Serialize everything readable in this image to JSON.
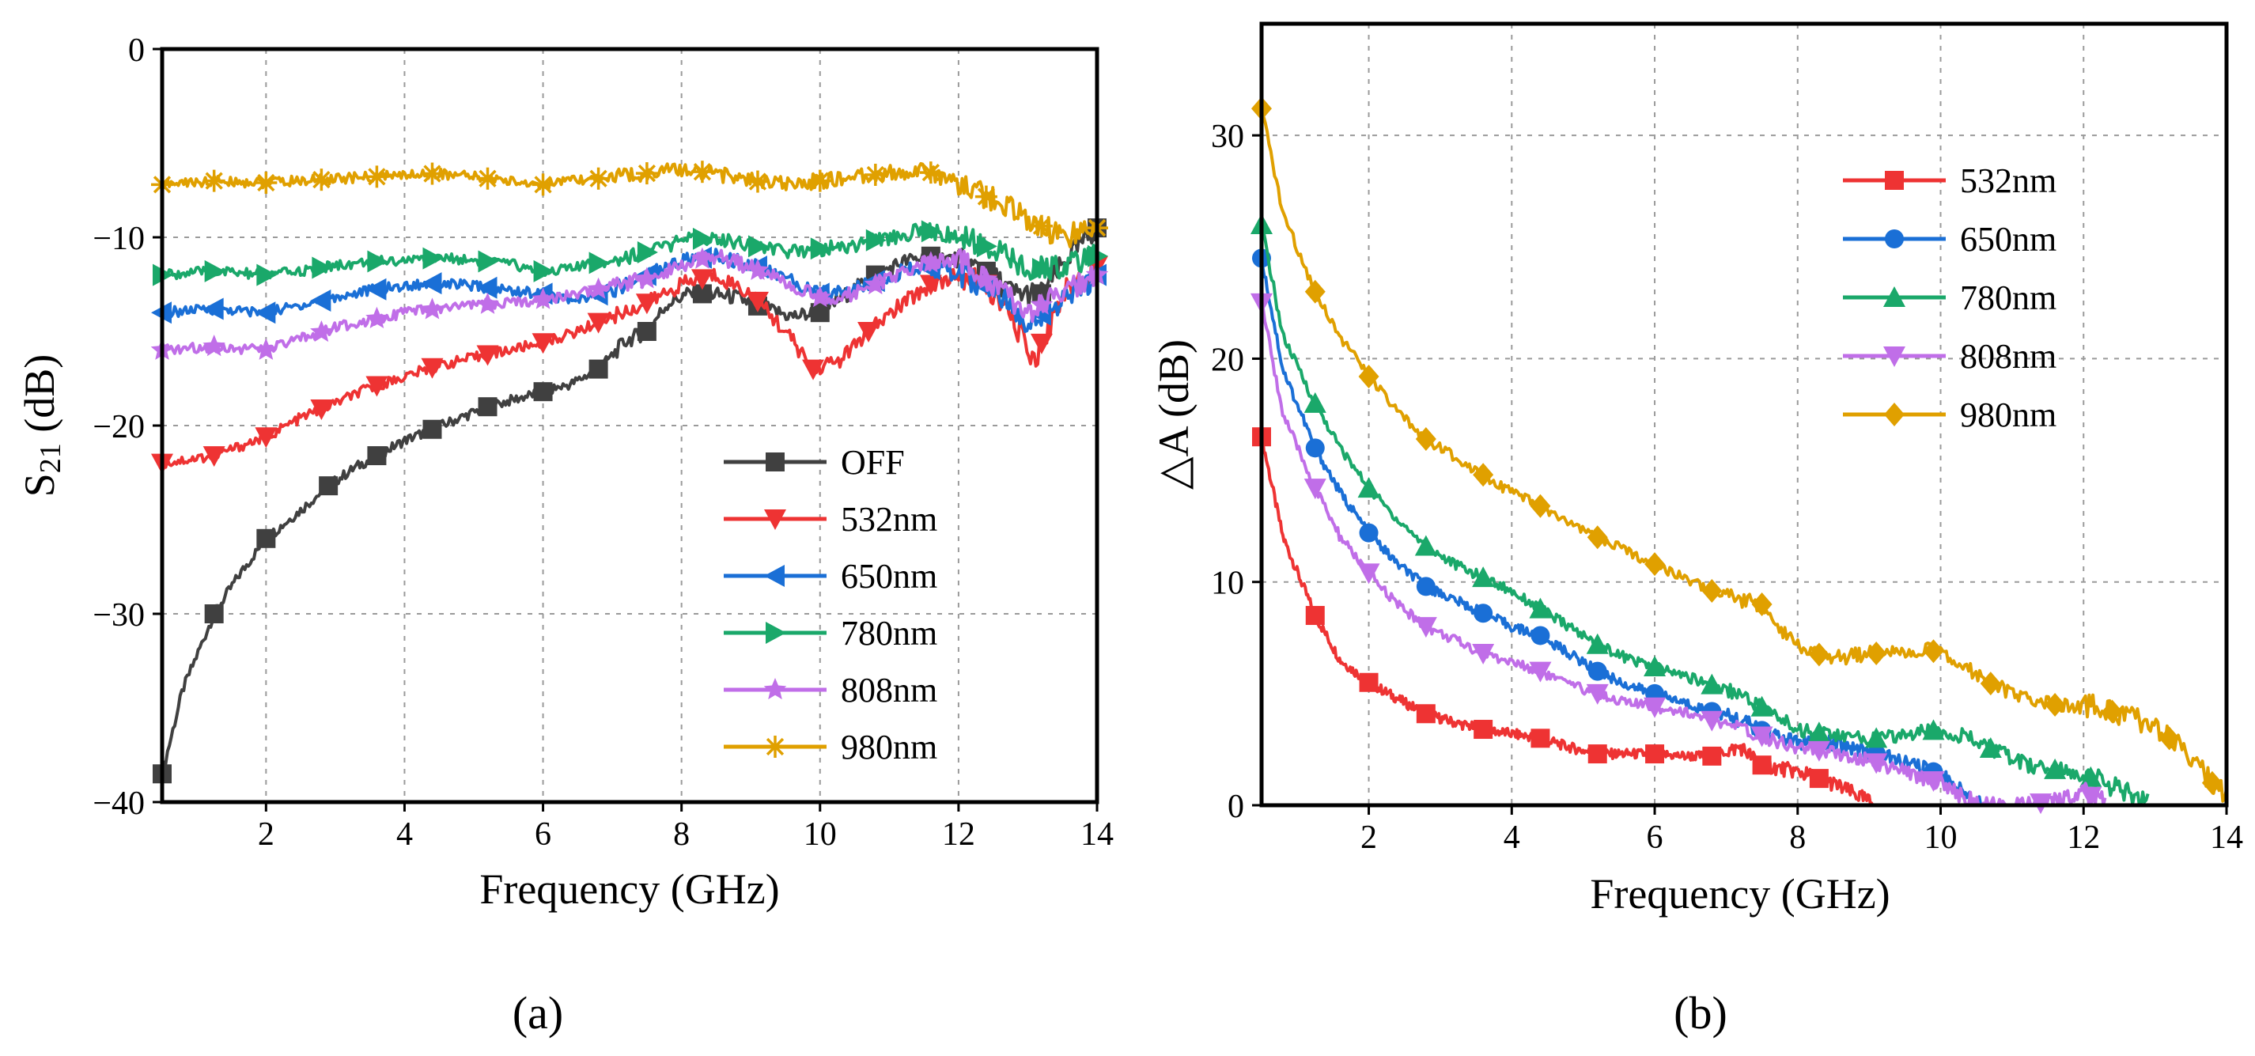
{
  "chart_data": [
    {
      "type": "line",
      "panel": "a",
      "caption": "(a)",
      "xlabel": "Frequency (GHz)",
      "ylabel_main": "S",
      "ylabel_sub": "21",
      "ylabel_unit": " (dB)",
      "xlim": [
        0.5,
        14
      ],
      "ylim": [
        -40,
        0
      ],
      "xticks": [
        2,
        4,
        6,
        8,
        10,
        12,
        14
      ],
      "xtick_labels": [
        "2",
        "4",
        "6",
        "8",
        "10",
        "12",
        "14"
      ],
      "yticks": [
        -40,
        -30,
        -20,
        -10,
        0
      ],
      "ytick_labels": [
        "−40",
        "−30",
        "−20",
        "−10",
        "0"
      ],
      "grid": true,
      "legend_position": "bottom-right",
      "series": [
        {
          "name": "OFF",
          "color": "#404040",
          "marker": "square",
          "x": [
            0.5,
            0.8,
            1.25,
            1.6,
            2.0,
            2.5,
            2.9,
            3.3,
            3.6,
            4.0,
            4.4,
            4.8,
            5.2,
            5.6,
            6.0,
            6.4,
            6.8,
            7.2,
            7.5,
            7.8,
            8.1,
            8.4,
            8.8,
            9.2,
            9.6,
            10.0,
            10.4,
            10.8,
            11.2,
            11.6,
            12.0,
            12.4,
            12.8,
            13.2,
            13.6,
            14.0
          ],
          "y": [
            -38.5,
            -34.0,
            -30.0,
            -28.0,
            -26.0,
            -24.5,
            -23.2,
            -22.2,
            -21.6,
            -20.8,
            -20.2,
            -19.6,
            -19.0,
            -18.6,
            -18.2,
            -17.8,
            -17.0,
            -15.5,
            -15.0,
            -13.5,
            -13.0,
            -13.0,
            -13.2,
            -13.8,
            -14.2,
            -14.0,
            -13.0,
            -12.0,
            -11.3,
            -11.0,
            -11.2,
            -11.8,
            -13.0,
            -13.0,
            -11.0,
            -9.5
          ],
          "marker_x": [
            0.5,
            1.25,
            2.0,
            2.9,
            3.6,
            4.4,
            5.2,
            6.0,
            6.8,
            7.5,
            8.3,
            9.1,
            10.0,
            10.8,
            11.6,
            12.4,
            13.2,
            14.0
          ]
        },
        {
          "name": "532nm",
          "color": "#ee3333",
          "marker": "triangle-down",
          "x": [
            0.5,
            1.25,
            2.0,
            2.5,
            3.0,
            3.5,
            4.0,
            4.5,
            5.0,
            5.5,
            6.0,
            6.5,
            7.0,
            7.5,
            8.0,
            8.5,
            9.0,
            9.5,
            9.9,
            10.3,
            10.7,
            11.2,
            11.6,
            12.0,
            12.4,
            12.8,
            13.1,
            13.5,
            14.0
          ],
          "y": [
            -22.0,
            -21.6,
            -20.6,
            -19.6,
            -18.8,
            -18.0,
            -17.4,
            -16.8,
            -16.4,
            -16.0,
            -15.6,
            -15.0,
            -14.2,
            -13.5,
            -12.5,
            -12.0,
            -13.0,
            -15.0,
            -17.0,
            -16.5,
            -15.0,
            -13.5,
            -12.5,
            -12.0,
            -12.5,
            -14.5,
            -16.5,
            -13.0,
            -11.5
          ],
          "marker_x": [
            0.5,
            1.25,
            2.0,
            2.8,
            3.6,
            4.4,
            5.2,
            6.0,
            6.8,
            7.5,
            8.3,
            9.1,
            9.9,
            10.7,
            11.6,
            12.4,
            13.2,
            14.0
          ]
        },
        {
          "name": "650nm",
          "color": "#1a6fd6",
          "marker": "triangle-left",
          "x": [
            0.5,
            1.25,
            2.0,
            2.5,
            3.0,
            3.5,
            4.0,
            4.5,
            5.0,
            5.5,
            6.0,
            6.5,
            7.0,
            7.5,
            8.0,
            8.5,
            9.0,
            9.5,
            10.0,
            10.5,
            11.0,
            11.5,
            12.0,
            12.5,
            13.0,
            13.5,
            14.0
          ],
          "y": [
            -14.0,
            -13.8,
            -14.0,
            -13.6,
            -13.2,
            -12.8,
            -12.6,
            -12.4,
            -12.6,
            -12.8,
            -13.0,
            -13.4,
            -12.8,
            -12.0,
            -11.2,
            -11.0,
            -11.4,
            -12.2,
            -13.0,
            -12.8,
            -12.0,
            -11.6,
            -12.0,
            -12.8,
            -14.5,
            -13.5,
            -12.0
          ],
          "marker_x": [
            0.5,
            1.25,
            2.0,
            2.8,
            3.6,
            4.4,
            5.2,
            6.0,
            6.8,
            7.5,
            8.3,
            9.1,
            10.0,
            10.8,
            11.6,
            12.4,
            13.2,
            14.0
          ]
        },
        {
          "name": "780nm",
          "color": "#1aa86a",
          "marker": "triangle-right",
          "x": [
            0.5,
            1.25,
            2.0,
            2.5,
            3.0,
            3.5,
            4.0,
            4.5,
            5.0,
            5.5,
            6.0,
            6.5,
            7.0,
            7.5,
            8.0,
            8.5,
            9.0,
            9.5,
            10.0,
            10.5,
            11.0,
            11.5,
            12.0,
            12.5,
            13.0,
            13.5,
            14.0
          ],
          "y": [
            -12.0,
            -11.8,
            -12.0,
            -11.8,
            -11.5,
            -11.3,
            -11.2,
            -11.1,
            -11.2,
            -11.4,
            -11.8,
            -11.6,
            -11.2,
            -10.8,
            -10.2,
            -10.0,
            -10.4,
            -10.8,
            -10.6,
            -10.4,
            -10.0,
            -9.6,
            -10.0,
            -10.6,
            -11.8,
            -11.5,
            -11.0
          ],
          "marker_x": [
            0.5,
            1.25,
            2.0,
            2.8,
            3.6,
            4.4,
            5.2,
            6.0,
            6.8,
            7.5,
            8.3,
            9.1,
            10.0,
            10.8,
            11.6,
            12.4,
            13.2,
            14.0
          ]
        },
        {
          "name": "808nm",
          "color": "#c06ee8",
          "marker": "star",
          "x": [
            0.5,
            1.25,
            2.0,
            2.5,
            3.0,
            3.5,
            4.0,
            4.5,
            5.0,
            5.5,
            6.0,
            6.5,
            7.0,
            7.5,
            8.0,
            8.5,
            9.0,
            9.5,
            10.0,
            10.5,
            11.0,
            11.5,
            12.0,
            12.5,
            13.0,
            13.5,
            14.0
          ],
          "y": [
            -16.0,
            -15.8,
            -16.0,
            -15.4,
            -14.8,
            -14.4,
            -14.0,
            -13.8,
            -13.6,
            -13.5,
            -13.3,
            -13.0,
            -12.6,
            -12.2,
            -11.4,
            -11.0,
            -11.6,
            -12.4,
            -13.2,
            -13.0,
            -12.2,
            -11.4,
            -11.2,
            -12.5,
            -14.0,
            -13.0,
            -12.0
          ],
          "marker_x": [
            0.5,
            1.25,
            2.0,
            2.8,
            3.6,
            4.4,
            5.2,
            6.0,
            6.8,
            7.5,
            8.3,
            9.1,
            10.0,
            10.8,
            11.6,
            12.4,
            13.2,
            14.0
          ]
        },
        {
          "name": "980nm",
          "color": "#e0a000",
          "marker": "asterisk",
          "x": [
            0.5,
            1.25,
            2.0,
            2.5,
            3.0,
            3.5,
            4.0,
            4.5,
            5.0,
            5.5,
            6.0,
            6.5,
            7.0,
            7.5,
            8.0,
            8.5,
            9.0,
            9.5,
            10.0,
            10.5,
            11.0,
            11.5,
            12.0,
            12.5,
            13.0,
            13.5,
            14.0
          ],
          "y": [
            -7.2,
            -7.0,
            -7.1,
            -7.0,
            -6.9,
            -6.8,
            -6.7,
            -6.6,
            -6.8,
            -7.0,
            -7.2,
            -7.0,
            -6.8,
            -6.6,
            -6.4,
            -6.6,
            -7.0,
            -7.2,
            -7.0,
            -6.8,
            -6.6,
            -6.4,
            -7.2,
            -8.0,
            -9.0,
            -10.0,
            -9.5
          ],
          "marker_x": [
            0.5,
            1.25,
            2.0,
            2.8,
            3.6,
            4.4,
            5.2,
            6.0,
            6.8,
            7.5,
            8.3,
            9.1,
            10.0,
            10.8,
            11.6,
            12.4,
            13.2,
            14.0
          ]
        }
      ]
    },
    {
      "type": "line",
      "panel": "b",
      "caption": "(b)",
      "xlabel": "Frequency (GHz)",
      "ylabel": "△A (dB)",
      "xlim": [
        0.5,
        14
      ],
      "ylim": [
        0,
        35
      ],
      "xticks": [
        2,
        4,
        6,
        8,
        10,
        12,
        14
      ],
      "xtick_labels": [
        "2",
        "4",
        "6",
        "8",
        "10",
        "12",
        "14"
      ],
      "yticks": [
        0,
        10,
        20,
        30
      ],
      "ytick_labels": [
        "0",
        "10",
        "20",
        "30"
      ],
      "grid": true,
      "legend_position": "top-right",
      "series": [
        {
          "name": "532nm",
          "color": "#ee3333",
          "marker": "square",
          "x": [
            0.5,
            0.8,
            1.25,
            1.6,
            2.0,
            2.5,
            2.8,
            3.2,
            3.6,
            4.0,
            4.4,
            4.8,
            5.2,
            5.6,
            6.0,
            6.4,
            6.8,
            7.2,
            7.5,
            8.0,
            8.4,
            8.8,
            9.1
          ],
          "y": [
            16.5,
            12.0,
            8.5,
            6.5,
            5.5,
            4.6,
            4.1,
            3.7,
            3.4,
            3.2,
            3.0,
            2.6,
            2.3,
            2.3,
            2.3,
            2.2,
            2.2,
            2.6,
            1.8,
            1.5,
            1.1,
            0.5,
            0.0
          ],
          "marker_x": [
            0.5,
            1.25,
            2.0,
            2.8,
            3.6,
            4.4,
            5.2,
            6.0,
            6.8,
            7.5,
            8.3
          ]
        },
        {
          "name": "650nm",
          "color": "#1a6fd6",
          "marker": "circle",
          "x": [
            0.5,
            0.8,
            1.25,
            1.6,
            2.0,
            2.4,
            2.8,
            3.2,
            3.6,
            4.0,
            4.4,
            4.8,
            5.2,
            5.6,
            6.0,
            6.4,
            6.8,
            7.2,
            7.6,
            8.0,
            8.4,
            8.8,
            9.2,
            9.6,
            10.0,
            10.3,
            10.6
          ],
          "y": [
            24.5,
            19.5,
            16.0,
            14.0,
            12.2,
            10.8,
            9.8,
            9.2,
            8.6,
            8.0,
            7.6,
            6.8,
            6.0,
            5.4,
            5.0,
            4.6,
            4.2,
            3.8,
            3.2,
            2.8,
            2.8,
            2.6,
            2.2,
            1.8,
            1.4,
            0.6,
            0.0
          ],
          "marker_x": [
            0.5,
            1.25,
            2.0,
            2.8,
            3.6,
            4.4,
            5.2,
            6.0,
            6.8,
            7.5,
            8.3,
            9.1,
            9.9
          ]
        },
        {
          "name": "780nm",
          "color": "#1aa86a",
          "marker": "triangle-up",
          "x": [
            0.5,
            0.8,
            1.25,
            1.6,
            2.0,
            2.4,
            2.8,
            3.2,
            3.6,
            4.0,
            4.4,
            4.8,
            5.2,
            5.6,
            6.0,
            6.4,
            6.8,
            7.2,
            7.5,
            8.0,
            8.4,
            8.8,
            9.2,
            9.6,
            10.0,
            10.4,
            10.8,
            11.2,
            11.6,
            12.0,
            12.4,
            12.9
          ],
          "y": [
            26.0,
            21.0,
            18.0,
            16.0,
            14.2,
            12.8,
            11.6,
            10.8,
            10.2,
            9.6,
            8.8,
            8.0,
            7.2,
            6.6,
            6.2,
            5.8,
            5.4,
            5.0,
            4.4,
            3.4,
            3.2,
            3.0,
            3.0,
            3.2,
            3.4,
            3.0,
            2.4,
            1.8,
            1.6,
            1.4,
            0.8,
            0.0
          ],
          "marker_x": [
            0.5,
            1.25,
            2.0,
            2.8,
            3.6,
            4.4,
            5.2,
            6.0,
            6.8,
            7.5,
            8.3,
            9.1,
            9.9,
            10.7,
            11.6,
            12.1
          ]
        },
        {
          "name": "808nm",
          "color": "#c06ee8",
          "marker": "triangle-down",
          "x": [
            0.5,
            0.8,
            1.25,
            1.6,
            2.0,
            2.4,
            2.8,
            3.2,
            3.6,
            4.0,
            4.4,
            4.8,
            5.2,
            5.6,
            6.0,
            6.4,
            6.8,
            7.2,
            7.6,
            8.0,
            8.4,
            8.8,
            9.2,
            9.6,
            10.0,
            10.3,
            10.6,
            11.2,
            11.6,
            12.0,
            12.3
          ],
          "y": [
            22.5,
            17.5,
            14.2,
            12.0,
            10.4,
            9.0,
            8.0,
            7.4,
            6.8,
            6.4,
            6.0,
            5.4,
            5.0,
            4.6,
            4.4,
            4.2,
            3.8,
            3.4,
            3.0,
            2.6,
            2.4,
            2.2,
            1.8,
            1.4,
            1.0,
            0.4,
            0.0,
            0.0,
            0.2,
            0.6,
            0.0
          ],
          "marker_x": [
            0.5,
            1.25,
            2.0,
            2.8,
            3.6,
            4.4,
            5.2,
            6.0,
            6.8,
            7.5,
            8.3,
            9.1,
            9.9,
            11.4,
            12.1
          ]
        },
        {
          "name": "980nm",
          "color": "#e0a000",
          "marker": "diamond",
          "x": [
            0.5,
            0.8,
            1.25,
            1.6,
            2.0,
            2.4,
            2.8,
            3.2,
            3.6,
            4.0,
            4.4,
            4.8,
            5.2,
            5.6,
            6.0,
            6.4,
            6.8,
            7.2,
            7.5,
            7.8,
            8.2,
            8.6,
            9.0,
            9.4,
            9.8,
            10.2,
            10.6,
            11.0,
            11.4,
            11.8,
            12.2,
            12.6,
            13.0,
            13.4,
            13.8,
            14.0
          ],
          "y": [
            31.2,
            26.5,
            23.0,
            21.0,
            19.2,
            17.6,
            16.4,
            15.6,
            14.8,
            14.0,
            13.4,
            12.6,
            12.0,
            11.4,
            10.8,
            10.2,
            9.6,
            9.2,
            9.0,
            7.8,
            6.8,
            6.6,
            6.8,
            6.8,
            7.0,
            6.6,
            5.6,
            5.0,
            4.6,
            4.4,
            4.4,
            4.0,
            3.6,
            2.4,
            1.0,
            0.4
          ],
          "marker_x": [
            0.5,
            1.25,
            2.0,
            2.8,
            3.6,
            4.4,
            5.2,
            6.0,
            6.8,
            7.5,
            8.3,
            9.1,
            9.9,
            10.7,
            11.6,
            12.4,
            13.2,
            13.8
          ]
        }
      ]
    }
  ]
}
